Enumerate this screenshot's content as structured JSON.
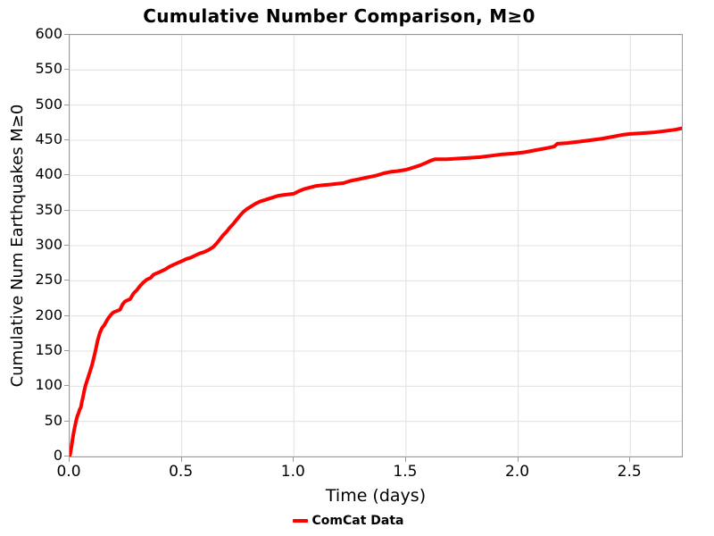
{
  "title": "Cumulative Number Comparison, M≥0",
  "colors": {
    "line": "#ff0000",
    "grid": "#e0e0e0",
    "spine": "#9a9a9a",
    "text": "#000000",
    "background": "#ffffff"
  },
  "legend": {
    "entries": [
      {
        "label": "ComCat Data",
        "color": "#ff0000"
      }
    ],
    "position": "bottom-center"
  },
  "chart_data": {
    "type": "line",
    "title": "Cumulative Number Comparison, M≥0",
    "xlabel": "Time (days)",
    "ylabel": "Cumulative Num Earthquakes M≥0",
    "xlim": [
      0,
      2.73
    ],
    "ylim": [
      0,
      600
    ],
    "grid": true,
    "xtick_values": [
      0.0,
      0.5,
      1.0,
      1.5,
      2.0,
      2.5
    ],
    "xtick_labels": [
      "0.0",
      "0.5",
      "1.0",
      "1.5",
      "2.0",
      "2.5"
    ],
    "ytick_values": [
      0,
      50,
      100,
      150,
      200,
      250,
      300,
      350,
      400,
      450,
      500,
      550,
      600
    ],
    "ytick_labels": [
      "0",
      "50",
      "100",
      "150",
      "200",
      "250",
      "300",
      "350",
      "400",
      "450",
      "500",
      "550",
      "600"
    ],
    "series": [
      {
        "name": "ComCat Data",
        "color": "#ff0000",
        "line_width": 4,
        "points": [
          [
            0,
            0
          ],
          [
            0.004,
            6
          ],
          [
            0.008,
            13
          ],
          [
            0.012,
            22
          ],
          [
            0.016,
            30
          ],
          [
            0.02,
            37
          ],
          [
            0.025,
            45
          ],
          [
            0.03,
            52
          ],
          [
            0.035,
            58
          ],
          [
            0.04,
            62
          ],
          [
            0.045,
            67
          ],
          [
            0.05,
            70
          ],
          [
            0.055,
            78
          ],
          [
            0.06,
            85
          ],
          [
            0.065,
            93
          ],
          [
            0.07,
            100
          ],
          [
            0.075,
            105
          ],
          [
            0.08,
            110
          ],
          [
            0.09,
            120
          ],
          [
            0.1,
            130
          ],
          [
            0.11,
            143
          ],
          [
            0.115,
            150
          ],
          [
            0.125,
            165
          ],
          [
            0.135,
            176
          ],
          [
            0.145,
            183
          ],
          [
            0.155,
            187
          ],
          [
            0.165,
            193
          ],
          [
            0.175,
            198
          ],
          [
            0.185,
            202
          ],
          [
            0.195,
            205
          ],
          [
            0.21,
            207
          ],
          [
            0.225,
            209
          ],
          [
            0.235,
            216
          ],
          [
            0.245,
            220
          ],
          [
            0.255,
            222
          ],
          [
            0.27,
            224
          ],
          [
            0.285,
            232
          ],
          [
            0.3,
            237
          ],
          [
            0.315,
            243
          ],
          [
            0.33,
            248
          ],
          [
            0.345,
            252
          ],
          [
            0.36,
            254
          ],
          [
            0.375,
            259
          ],
          [
            0.39,
            261
          ],
          [
            0.405,
            263
          ],
          [
            0.425,
            266
          ],
          [
            0.445,
            270
          ],
          [
            0.465,
            273
          ],
          [
            0.485,
            276
          ],
          [
            0.5,
            278
          ],
          [
            0.52,
            281
          ],
          [
            0.54,
            283
          ],
          [
            0.56,
            286
          ],
          [
            0.58,
            289
          ],
          [
            0.6,
            291
          ],
          [
            0.62,
            294
          ],
          [
            0.64,
            298
          ],
          [
            0.655,
            303
          ],
          [
            0.67,
            309
          ],
          [
            0.685,
            315
          ],
          [
            0.7,
            320
          ],
          [
            0.715,
            326
          ],
          [
            0.73,
            331
          ],
          [
            0.745,
            337
          ],
          [
            0.76,
            343
          ],
          [
            0.775,
            348
          ],
          [
            0.79,
            352
          ],
          [
            0.81,
            356
          ],
          [
            0.83,
            360
          ],
          [
            0.85,
            363
          ],
          [
            0.87,
            365
          ],
          [
            0.89,
            367
          ],
          [
            0.91,
            369
          ],
          [
            0.93,
            371
          ],
          [
            0.95,
            372
          ],
          [
            0.975,
            373
          ],
          [
            1.0,
            374
          ],
          [
            1.025,
            378
          ],
          [
            1.05,
            381
          ],
          [
            1.075,
            383
          ],
          [
            1.1,
            385
          ],
          [
            1.13,
            386
          ],
          [
            1.16,
            387
          ],
          [
            1.19,
            388
          ],
          [
            1.22,
            389
          ],
          [
            1.25,
            392
          ],
          [
            1.28,
            394
          ],
          [
            1.31,
            396
          ],
          [
            1.34,
            398
          ],
          [
            1.37,
            400
          ],
          [
            1.4,
            403
          ],
          [
            1.43,
            405
          ],
          [
            1.46,
            406
          ],
          [
            1.5,
            408
          ],
          [
            1.53,
            411
          ],
          [
            1.56,
            414
          ],
          [
            1.59,
            418
          ],
          [
            1.61,
            421
          ],
          [
            1.63,
            423
          ],
          [
            1.68,
            423
          ],
          [
            1.73,
            424
          ],
          [
            1.78,
            425
          ],
          [
            1.83,
            426
          ],
          [
            1.88,
            428
          ],
          [
            1.93,
            430
          ],
          [
            1.98,
            431
          ],
          [
            2.03,
            433
          ],
          [
            2.08,
            436
          ],
          [
            2.13,
            439
          ],
          [
            2.16,
            441
          ],
          [
            2.175,
            445
          ],
          [
            2.22,
            446
          ],
          [
            2.27,
            448
          ],
          [
            2.32,
            450
          ],
          [
            2.37,
            452
          ],
          [
            2.42,
            455
          ],
          [
            2.47,
            458
          ],
          [
            2.5,
            459
          ],
          [
            2.55,
            460
          ],
          [
            2.6,
            461
          ],
          [
            2.65,
            463
          ],
          [
            2.7,
            465
          ],
          [
            2.73,
            467
          ]
        ]
      }
    ]
  }
}
